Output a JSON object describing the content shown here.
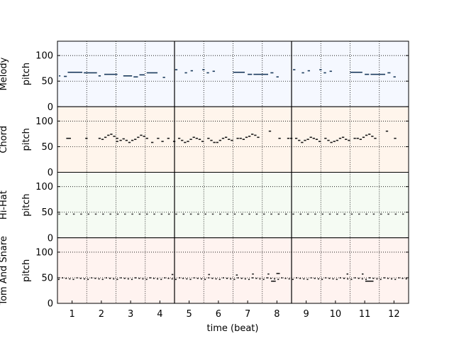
{
  "chart_data": {
    "type": "scatter",
    "description_free": true,
    "xlabel": "time (beat)",
    "xlim": [
      0.5,
      12.5
    ],
    "x_ticks": [
      1,
      2,
      3,
      4,
      5,
      6,
      7,
      8,
      9,
      10,
      11,
      12
    ],
    "bar_lines": [
      4.5,
      8.5
    ],
    "grid": true,
    "grid_style": "dotted",
    "tracks": [
      {
        "name": "Melody",
        "ylabel": "pitch",
        "ylim": [
          0,
          128
        ],
        "y_ticks": [
          0,
          50,
          100
        ],
        "color": "#1a3a5c",
        "background": "#f5f8ff",
        "notes": [
          [
            0.55,
            0.6,
            60
          ],
          [
            0.72,
            0.82,
            59
          ],
          [
            0.85,
            1.35,
            67
          ],
          [
            1.4,
            1.85,
            66
          ],
          [
            1.9,
            1.98,
            60
          ],
          [
            2.1,
            2.55,
            63
          ],
          [
            2.75,
            3.05,
            60
          ],
          [
            3.1,
            3.25,
            58
          ],
          [
            3.3,
            3.48,
            62
          ],
          [
            3.55,
            3.92,
            66
          ],
          [
            4.1,
            4.18,
            57
          ],
          [
            4.52,
            4.6,
            72
          ],
          [
            4.85,
            4.93,
            66
          ],
          [
            5.05,
            5.13,
            70
          ],
          [
            5.45,
            5.53,
            72
          ],
          [
            5.6,
            5.68,
            66
          ],
          [
            5.8,
            5.88,
            69
          ],
          [
            6.5,
            6.9,
            67
          ],
          [
            7.0,
            7.15,
            63
          ],
          [
            7.2,
            7.7,
            63
          ],
          [
            7.78,
            7.88,
            66
          ],
          [
            7.98,
            8.06,
            58
          ],
          [
            8.55,
            8.63,
            72
          ],
          [
            8.85,
            8.93,
            66
          ],
          [
            9.05,
            9.13,
            70
          ],
          [
            9.45,
            9.53,
            72
          ],
          [
            9.6,
            9.68,
            66
          ],
          [
            9.8,
            9.88,
            69
          ],
          [
            10.5,
            10.92,
            67
          ],
          [
            11.0,
            11.15,
            63
          ],
          [
            11.2,
            11.7,
            63
          ],
          [
            11.78,
            11.88,
            66
          ],
          [
            11.98,
            12.06,
            58
          ]
        ]
      },
      {
        "name": "Chord",
        "ylabel": "pitch",
        "ylim": [
          0,
          128
        ],
        "y_ticks": [
          0,
          50,
          100
        ],
        "color": "#1a1a1a",
        "background": "#fff5ec",
        "notes": [
          [
            0.8,
            0.96,
            66
          ],
          [
            1.45,
            1.53,
            66
          ],
          [
            1.9,
            1.98,
            66
          ],
          [
            2.0,
            2.08,
            64
          ],
          [
            2.1,
            2.18,
            68
          ],
          [
            2.2,
            2.28,
            72
          ],
          [
            2.3,
            2.38,
            74
          ],
          [
            2.4,
            2.48,
            70
          ],
          [
            2.5,
            2.58,
            66
          ],
          [
            2.5,
            2.58,
            60
          ],
          [
            2.62,
            2.7,
            62
          ],
          [
            2.72,
            2.8,
            65
          ],
          [
            2.82,
            2.9,
            62
          ],
          [
            2.92,
            3.0,
            58
          ],
          [
            3.02,
            3.1,
            62
          ],
          [
            3.12,
            3.2,
            64
          ],
          [
            3.22,
            3.3,
            68
          ],
          [
            3.32,
            3.4,
            72
          ],
          [
            3.42,
            3.5,
            70
          ],
          [
            3.52,
            3.6,
            66
          ],
          [
            3.7,
            3.78,
            58
          ],
          [
            3.9,
            3.98,
            66
          ],
          [
            4.05,
            4.13,
            60
          ],
          [
            4.25,
            4.33,
            66
          ],
          [
            4.45,
            4.53,
            60
          ],
          [
            4.62,
            4.7,
            66
          ],
          [
            4.72,
            4.8,
            62
          ],
          [
            4.82,
            4.9,
            58
          ],
          [
            4.92,
            5.0,
            60
          ],
          [
            5.02,
            5.1,
            64
          ],
          [
            5.12,
            5.2,
            68
          ],
          [
            5.22,
            5.3,
            66
          ],
          [
            5.32,
            5.4,
            64
          ],
          [
            5.42,
            5.5,
            60
          ],
          [
            5.62,
            5.7,
            66
          ],
          [
            5.72,
            5.8,
            62
          ],
          [
            5.82,
            5.9,
            58
          ],
          [
            5.92,
            6.0,
            58
          ],
          [
            6.02,
            6.1,
            62
          ],
          [
            6.12,
            6.2,
            66
          ],
          [
            6.22,
            6.3,
            68
          ],
          [
            6.32,
            6.4,
            64
          ],
          [
            6.42,
            6.5,
            62
          ],
          [
            6.62,
            6.7,
            66
          ],
          [
            6.72,
            6.8,
            66
          ],
          [
            6.82,
            6.9,
            64
          ],
          [
            6.92,
            7.0,
            68
          ],
          [
            7.02,
            7.1,
            70
          ],
          [
            7.12,
            7.2,
            74
          ],
          [
            7.22,
            7.3,
            72
          ],
          [
            7.32,
            7.4,
            68
          ],
          [
            7.72,
            7.8,
            80
          ],
          [
            8.05,
            8.13,
            66
          ],
          [
            8.35,
            8.43,
            66
          ],
          [
            8.45,
            8.53,
            66
          ],
          [
            8.62,
            8.7,
            66
          ],
          [
            8.72,
            8.8,
            62
          ],
          [
            8.82,
            8.9,
            58
          ],
          [
            8.92,
            9.0,
            62
          ],
          [
            9.02,
            9.1,
            64
          ],
          [
            9.12,
            9.2,
            68
          ],
          [
            9.22,
            9.3,
            66
          ],
          [
            9.32,
            9.4,
            64
          ],
          [
            9.42,
            9.5,
            60
          ],
          [
            9.62,
            9.7,
            66
          ],
          [
            9.72,
            9.8,
            62
          ],
          [
            9.82,
            9.9,
            58
          ],
          [
            9.92,
            10.0,
            60
          ],
          [
            10.02,
            10.1,
            62
          ],
          [
            10.12,
            10.2,
            66
          ],
          [
            10.22,
            10.3,
            68
          ],
          [
            10.32,
            10.4,
            64
          ],
          [
            10.42,
            10.5,
            62
          ],
          [
            10.62,
            10.7,
            66
          ],
          [
            10.72,
            10.8,
            66
          ],
          [
            10.82,
            10.9,
            64
          ],
          [
            10.92,
            11.0,
            68
          ],
          [
            11.02,
            11.1,
            72
          ],
          [
            11.12,
            11.2,
            74
          ],
          [
            11.22,
            11.3,
            70
          ],
          [
            11.32,
            11.4,
            66
          ],
          [
            11.72,
            11.8,
            80
          ],
          [
            12.0,
            12.08,
            66
          ]
        ]
      },
      {
        "name": "Hi-Hat",
        "ylabel": "pitch",
        "ylim": [
          0,
          128
        ],
        "y_ticks": [
          0,
          50,
          100
        ],
        "color": "#3a3a3a",
        "background": "#f5fbf3",
        "pitch": 46,
        "start": 0.5,
        "step": 0.25,
        "count": 48
      },
      {
        "name": "Tom And Snare",
        "ylabel": "pitch",
        "ylim": [
          0,
          128
        ],
        "y_ticks": [
          0,
          50,
          100
        ],
        "color": "#1a1a1a",
        "background": "#fff3f0",
        "base_pitch": 48,
        "base_start": 0.5,
        "base_step": 0.125,
        "base_count": 96,
        "notes": [
          [
            4.4,
            4.46,
            56
          ],
          [
            5.65,
            5.71,
            56
          ],
          [
            6.6,
            6.66,
            55
          ],
          [
            7.15,
            7.21,
            57
          ],
          [
            7.68,
            7.74,
            57
          ],
          [
            7.8,
            7.9,
            43
          ],
          [
            7.88,
            7.96,
            43
          ],
          [
            7.98,
            8.1,
            58
          ],
          [
            10.38,
            10.44,
            57
          ],
          [
            10.9,
            10.96,
            57
          ],
          [
            11.02,
            11.3,
            43
          ]
        ]
      }
    ]
  }
}
